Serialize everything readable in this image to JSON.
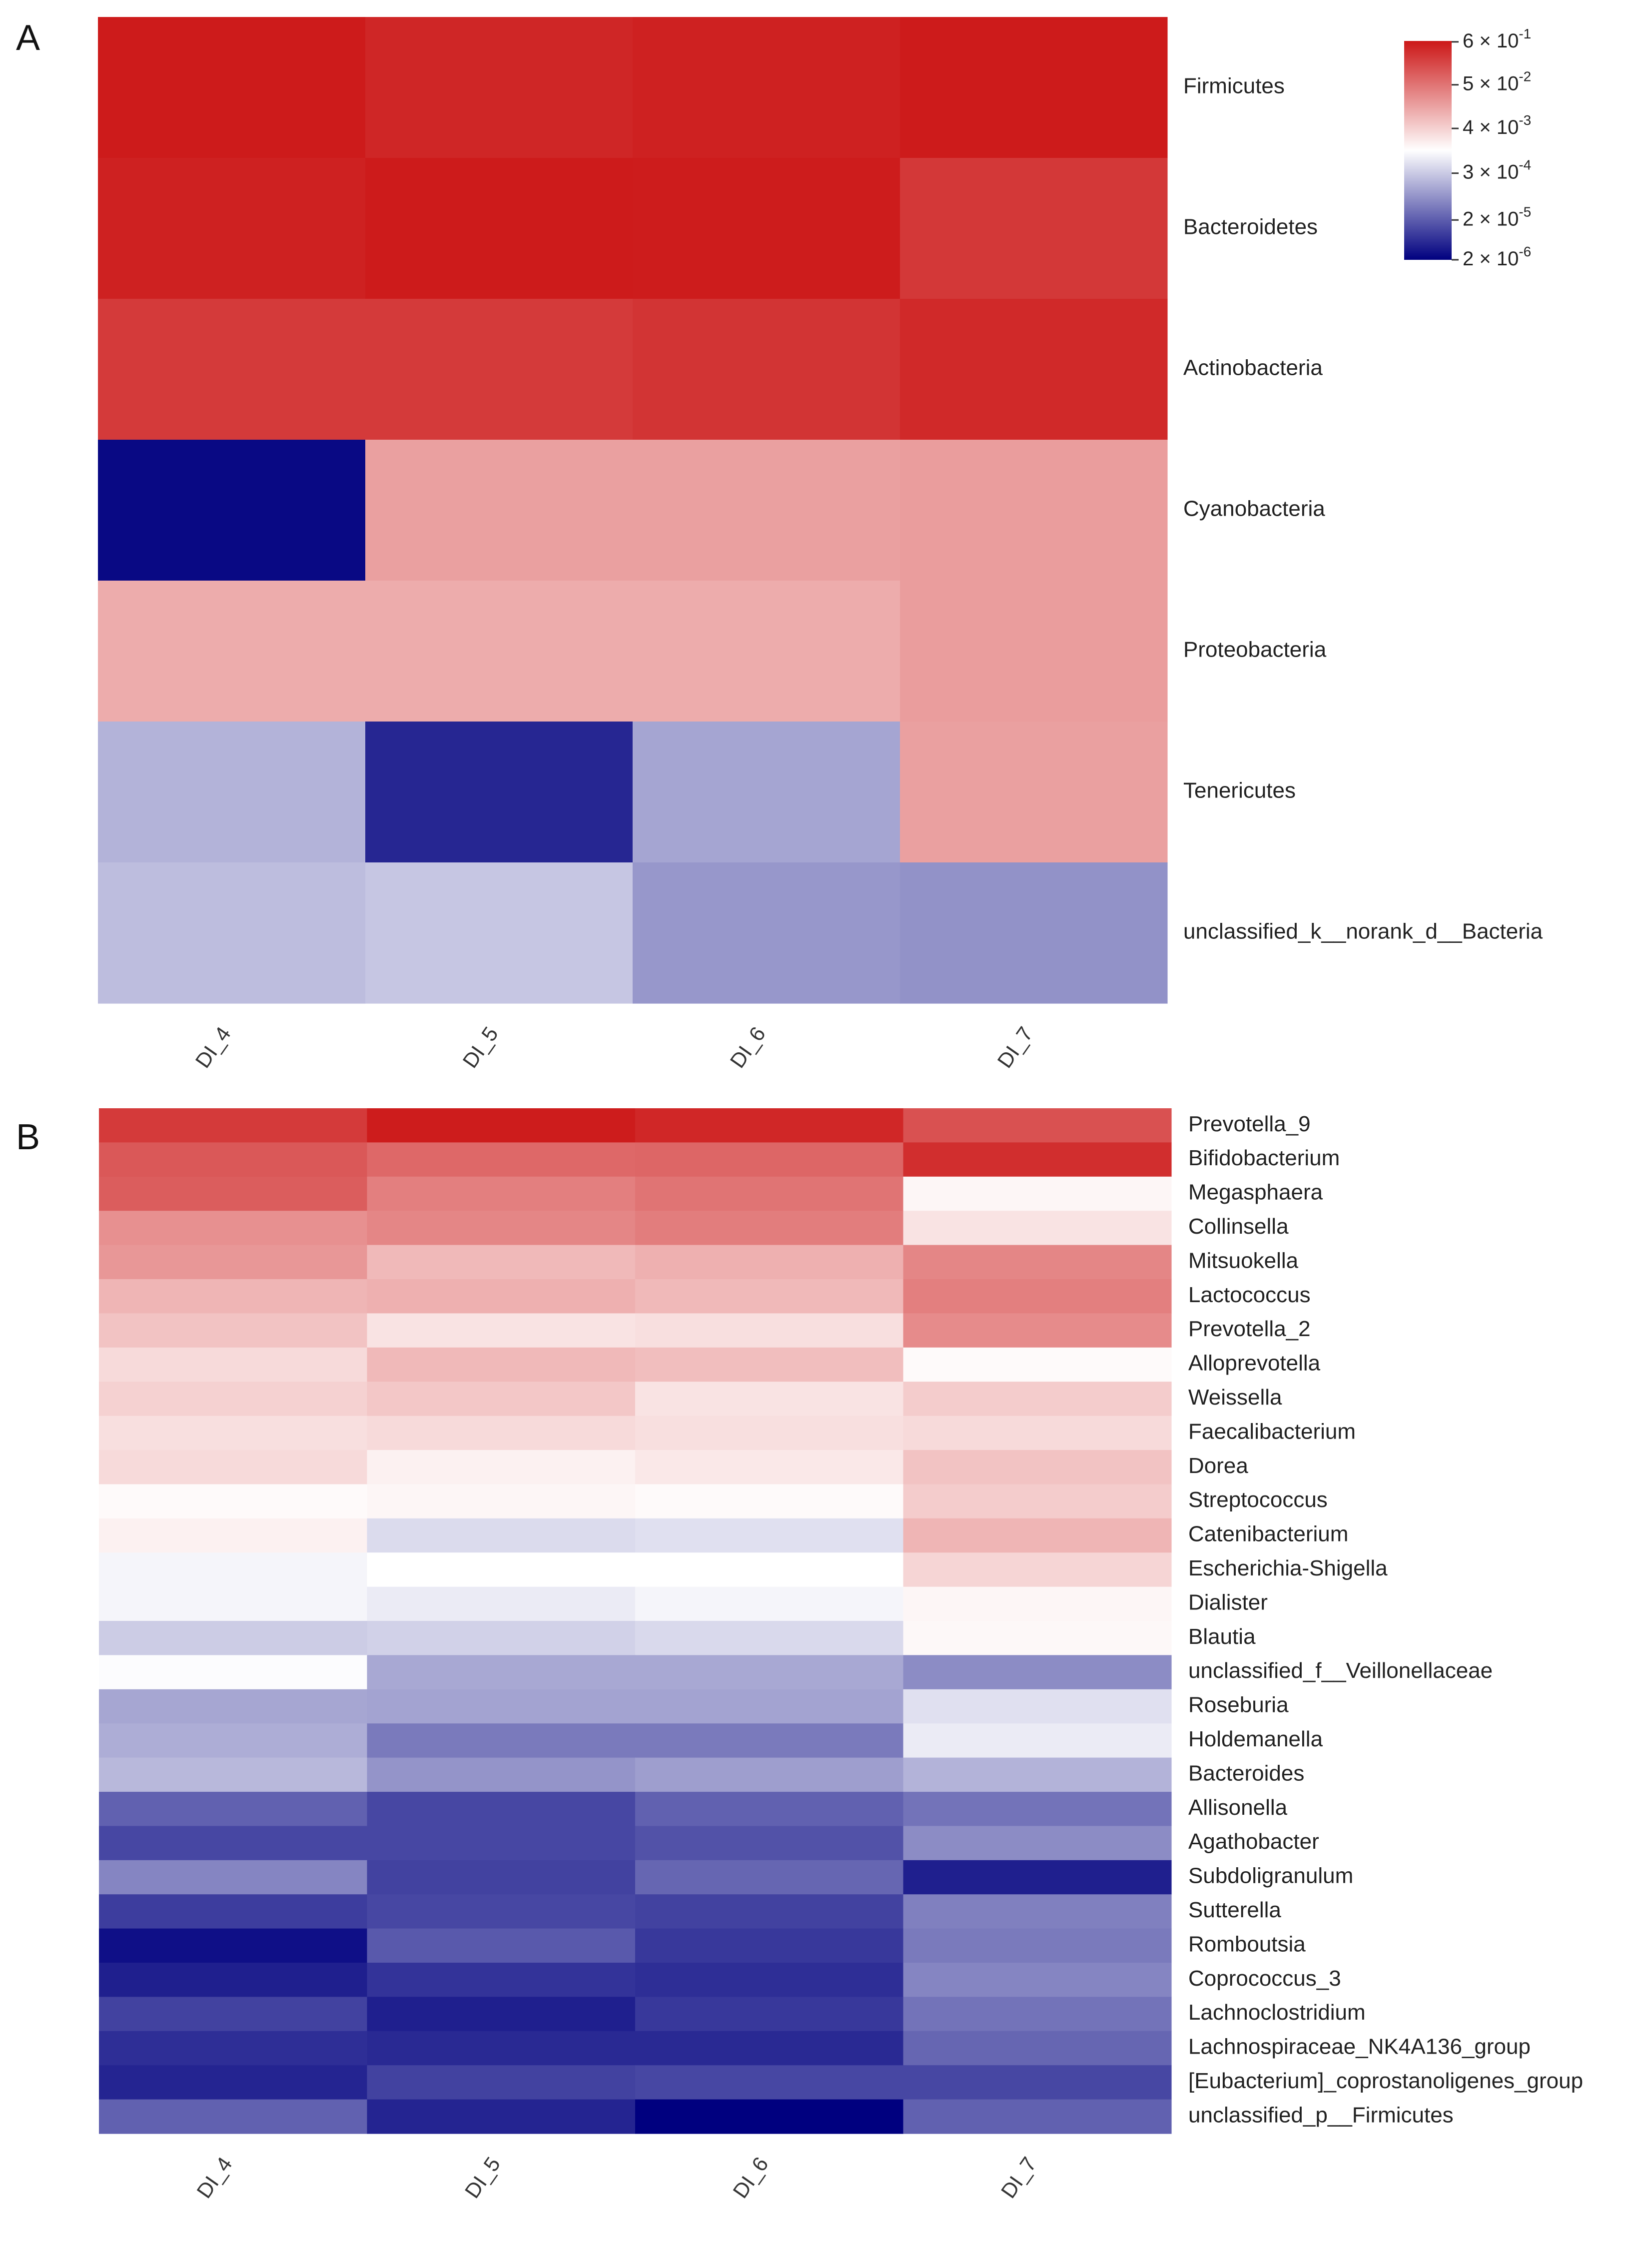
{
  "figure": {
    "panel_a_label": "A",
    "panel_b_label": "B"
  },
  "colors": {
    "high": "#cc1717",
    "mid": "#ffffff",
    "low": "#00007f"
  },
  "chart_data": [
    {
      "type": "heatmap",
      "panel": "A",
      "title": "",
      "columns": [
        "DI_4",
        "DI_5",
        "DI_6",
        "DI_7"
      ],
      "rows": [
        "Firmicutes",
        "Bacteroidetes",
        "Actinobacteria",
        "Cyanobacteria",
        "Proteobacteria",
        "Tenericutes",
        "unclassified_k__norank_d__Bacteria"
      ],
      "color_scale": "log10 relative abundance, red (high) - white - blue (low)",
      "legend": {
        "range_log10": [
          -5.7,
          -0.2
        ],
        "ticks": [
          {
            "base": "6 × 10",
            "exp": "-1",
            "log10": -0.222
          },
          {
            "base": "5 × 10",
            "exp": "-2",
            "log10": -1.301
          },
          {
            "base": "4 × 10",
            "exp": "-3",
            "log10": -2.398
          },
          {
            "base": "3 × 10",
            "exp": "-4",
            "log10": -3.523
          },
          {
            "base": "2 × 10",
            "exp": "-5",
            "log10": -4.699
          },
          {
            "base": "2 × 10",
            "exp": "-6",
            "log10": -5.699
          }
        ]
      },
      "values_log10": [
        [
          -0.25,
          -0.38,
          -0.32,
          -0.25
        ],
        [
          -0.32,
          -0.25,
          -0.26,
          -0.6
        ],
        [
          -0.62,
          -0.62,
          -0.55,
          -0.42
        ],
        [
          -5.6,
          -1.85,
          -1.85,
          -1.82
        ],
        [
          -2.0,
          -2.0,
          -2.0,
          -1.82
        ],
        [
          -3.8,
          -5.3,
          -3.95,
          -1.85
        ],
        [
          -3.7,
          -3.6,
          -4.1,
          -4.15
        ]
      ]
    },
    {
      "type": "heatmap",
      "panel": "B",
      "title": "",
      "columns": [
        "DI_4",
        "DI_5",
        "DI_6",
        "DI_7"
      ],
      "rows": [
        "Prevotella_9",
        "Bifidobacterium",
        "Megasphaera",
        "Collinsella",
        "Mitsuokella",
        "Lactococcus",
        "Prevotella_2",
        "Alloprevotella",
        "Weissella",
        "Faecalibacterium",
        "Dorea",
        "Streptococcus",
        "Catenibacterium",
        "Escherichia-Shigella",
        "Dialister",
        "Blautia",
        "unclassified_f__Veillonellaceae",
        "Roseburia",
        "Holdemanella",
        "Bacteroides",
        "Allisonella",
        "Agathobacter",
        "Subdoligranulum",
        "Sutterella",
        "Romboutsia",
        "Coprococcus_3",
        "Lachnoclostridium",
        "Lachnospiraceae_NK4A136_group",
        "[Eubacterium]_coprostanoligenes_group",
        "unclassified_p__Firmicutes"
      ],
      "color_scale": "relative score, red (high) - white (0) - blue (low)",
      "values": [
        [
          0.85,
          0.98,
          0.93,
          0.75
        ],
        [
          0.72,
          0.65,
          0.66,
          0.9
        ],
        [
          0.7,
          0.55,
          0.6,
          0.04
        ],
        [
          0.48,
          0.52,
          0.56,
          0.12
        ],
        [
          0.45,
          0.3,
          0.34,
          0.52
        ],
        [
          0.32,
          0.34,
          0.3,
          0.55
        ],
        [
          0.26,
          0.12,
          0.14,
          0.5
        ],
        [
          0.16,
          0.3,
          0.28,
          0.02
        ],
        [
          0.2,
          0.24,
          0.12,
          0.22
        ],
        [
          0.14,
          0.16,
          0.14,
          0.16
        ],
        [
          0.16,
          0.06,
          0.1,
          0.26
        ],
        [
          0.02,
          0.04,
          0.02,
          0.22
        ],
        [
          0.06,
          -0.14,
          -0.12,
          0.32
        ],
        [
          -0.04,
          0.0,
          0.0,
          0.18
        ],
        [
          -0.04,
          -0.08,
          -0.04,
          0.04
        ],
        [
          -0.2,
          -0.18,
          -0.15,
          0.03
        ],
        [
          -0.01,
          -0.34,
          -0.34,
          -0.45
        ],
        [
          -0.35,
          -0.36,
          -0.36,
          -0.12
        ],
        [
          -0.32,
          -0.52,
          -0.52,
          -0.08
        ],
        [
          -0.28,
          -0.42,
          -0.38,
          -0.3
        ],
        [
          -0.62,
          -0.72,
          -0.62,
          -0.55
        ],
        [
          -0.72,
          -0.72,
          -0.68,
          -0.45
        ],
        [
          -0.48,
          -0.74,
          -0.6,
          -0.88
        ],
        [
          -0.76,
          -0.72,
          -0.74,
          -0.5
        ],
        [
          -0.94,
          -0.65,
          -0.78,
          -0.52
        ],
        [
          -0.88,
          -0.8,
          -0.82,
          -0.48
        ],
        [
          -0.74,
          -0.88,
          -0.78,
          -0.55
        ],
        [
          -0.82,
          -0.84,
          -0.84,
          -0.6
        ],
        [
          -0.86,
          -0.74,
          -0.72,
          -0.72
        ],
        [
          -0.62,
          -0.86,
          -1.0,
          -0.62
        ]
      ]
    }
  ]
}
